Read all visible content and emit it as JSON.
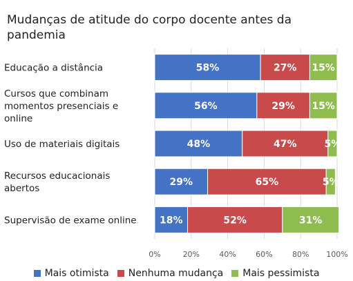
{
  "chart_data": {
    "type": "bar",
    "orientation": "horizontal",
    "stacked": true,
    "title": "Mudanças de atitude do corpo docente antes da pandemia",
    "categories": [
      "Educação a distância",
      "Cursos que combinam momentos presenciais e online",
      "Uso de materiais digitais",
      "Recursos educacionais abertos",
      "Supervisão de exame online"
    ],
    "category_lines": [
      [
        "Educação a distância"
      ],
      [
        "Cursos que combinam",
        "momentos presenciais e",
        "online"
      ],
      [
        "Uso de materiais digitais"
      ],
      [
        "Recursos educacionais",
        "abertos"
      ],
      [
        "Supervisão de exame online"
      ]
    ],
    "series": [
      {
        "name": "Mais otimista",
        "color": "#4472c4",
        "values": [
          58,
          56,
          48,
          29,
          18
        ]
      },
      {
        "name": "Nenhuma mudança",
        "color": "#c94a4a",
        "values": [
          27,
          29,
          47,
          65,
          52
        ]
      },
      {
        "name": "Mais pessimista",
        "color": "#8fbc4f",
        "values": [
          15,
          15,
          5,
          5,
          31
        ]
      }
    ],
    "xlim": [
      0,
      100
    ],
    "x_ticks": [
      "0%",
      "20%",
      "40%",
      "60%",
      "80%",
      "100%"
    ],
    "value_format": "percent",
    "legend_position": "bottom",
    "grid": true
  }
}
